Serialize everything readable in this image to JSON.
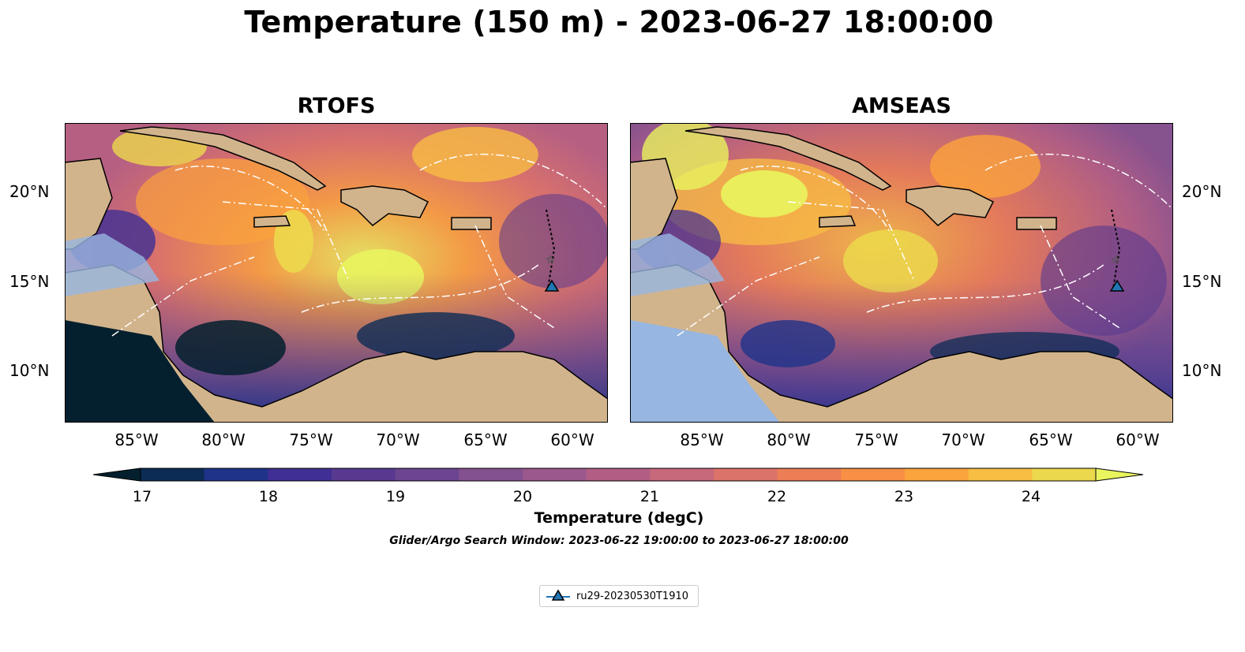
{
  "title": "Temperature (150 m) - 2023-06-27 18:00:00",
  "panels": [
    {
      "title": "RTOFS"
    },
    {
      "title": "AMSEAS"
    }
  ],
  "axes": {
    "x_ticks": [
      "85°W",
      "80°W",
      "75°W",
      "70°W",
      "65°W",
      "60°W"
    ],
    "y_ticks": [
      "20°N",
      "15°N",
      "10°N"
    ],
    "lon_range": [
      -89,
      -58
    ],
    "lat_range": [
      7,
      24
    ]
  },
  "colorbar": {
    "label": "Temperature (degC)",
    "ticks": [
      "17",
      "18",
      "19",
      "20",
      "21",
      "22",
      "23",
      "24"
    ],
    "min": 17,
    "max": 24.5,
    "step": 0.5,
    "extend": "both",
    "colormap": "thermal",
    "colors": [
      "#04202e",
      "#0c2c55",
      "#1f3389",
      "#402f94",
      "#59398f",
      "#6c4590",
      "#84518f",
      "#9a588c",
      "#b25e84",
      "#c8687b",
      "#dc7369",
      "#ec7e55",
      "#f78f44",
      "#fba33c",
      "#f8bd43",
      "#ecd84c",
      "#e9f45e"
    ]
  },
  "search_window": "Glider/Argo Search Window: 2023-06-22 19:00:00 to 2023-06-27 18:00:00",
  "legend": {
    "entries": [
      {
        "label": "ru29-20230530T1910",
        "marker": "triangle",
        "color": "#1f77b4"
      }
    ]
  },
  "colors": {
    "land": "#d2b48c",
    "shallow_water": "#97b6e1",
    "coastline": "#000000"
  }
}
